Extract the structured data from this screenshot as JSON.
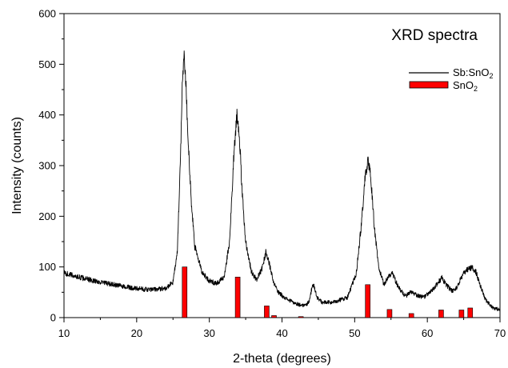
{
  "chart_data": {
    "type": "line",
    "title": "XRD spectra",
    "xlabel": "2-theta (degrees)",
    "ylabel": "Intensity (counts)",
    "xlim": [
      10,
      70
    ],
    "ylim": [
      0,
      600
    ],
    "x_ticks": [
      "10",
      "20",
      "30",
      "40",
      "50",
      "60",
      "70"
    ],
    "y_ticks": [
      "0",
      "100",
      "200",
      "300",
      "400",
      "500",
      "600"
    ],
    "grid": false,
    "legend_position": "top-right",
    "colors": {
      "line": "#000000",
      "bar_fill": "#ff0000",
      "bar_stroke": "#000000"
    },
    "series": [
      {
        "name_main": "Sb:SnO",
        "name_sub": "2",
        "kind": "line",
        "x": [
          10,
          12,
          14,
          16,
          18,
          20,
          22,
          24,
          25,
          25.6,
          26,
          26.3,
          26.5,
          26.7,
          27,
          27.5,
          28,
          29,
          30,
          31,
          32,
          32.8,
          33.4,
          33.8,
          34.1,
          34.5,
          35,
          35.8,
          36.5,
          37.2,
          37.8,
          38.2,
          38.8,
          39.5,
          40.5,
          41.5,
          42.5,
          43.3,
          43.8,
          44.1,
          44.4,
          44.8,
          45.5,
          47,
          49,
          50.2,
          50.9,
          51.4,
          51.8,
          52.2,
          52.7,
          53.3,
          54,
          54.6,
          55.2,
          56,
          57,
          57.7,
          58.4,
          59.5,
          60.8,
          61.5,
          62,
          62.6,
          63.4,
          64.1,
          64.7,
          65.2,
          65.7,
          66.2,
          66.7,
          67.3,
          68,
          69,
          70
        ],
        "y": [
          88,
          80,
          73,
          67,
          62,
          57,
          55,
          58,
          70,
          130,
          300,
          470,
          520,
          490,
          380,
          230,
          140,
          90,
          72,
          68,
          78,
          150,
          330,
          400,
          370,
          250,
          150,
          90,
          75,
          95,
          130,
          110,
          70,
          50,
          38,
          30,
          25,
          24,
          35,
          58,
          65,
          40,
          30,
          30,
          40,
          85,
          180,
          270,
          310,
          280,
          180,
          100,
          65,
          80,
          88,
          60,
          42,
          50,
          45,
          40,
          55,
          70,
          78,
          65,
          52,
          60,
          80,
          90,
          97,
          98,
          90,
          62,
          35,
          20,
          15
        ]
      },
      {
        "name_main": "SnO",
        "name_sub": "2",
        "kind": "bar",
        "x": [
          26.6,
          33.9,
          37.9,
          38.9,
          42.6,
          51.8,
          54.8,
          57.8,
          61.9,
          64.7,
          65.9
        ],
        "values": [
          100,
          80,
          23,
          4,
          2,
          65,
          16,
          8,
          15,
          15,
          19
        ]
      }
    ]
  }
}
